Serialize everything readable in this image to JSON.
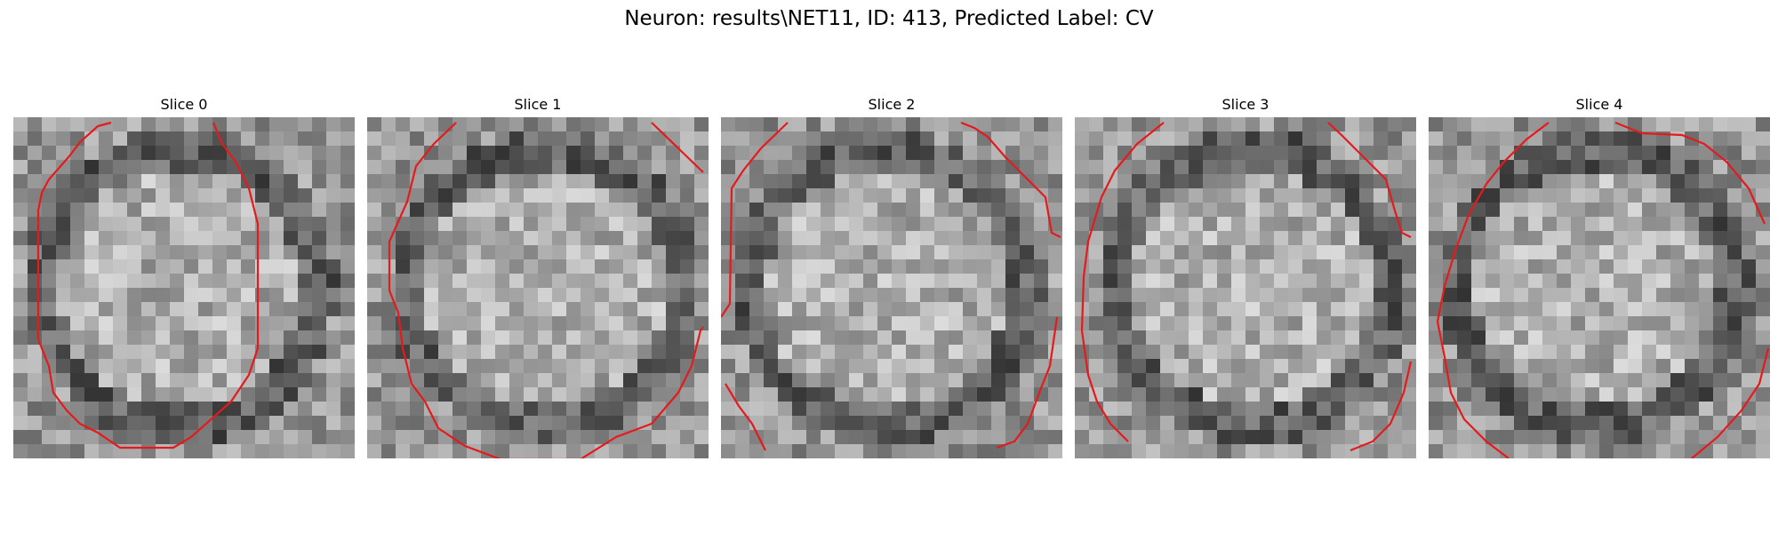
{
  "figure": {
    "title": "Neuron: results\\NET11, ID: 413, Predicted Label: CV"
  },
  "panels": [
    {
      "title": "Slice 0"
    },
    {
      "title": "Slice 1"
    },
    {
      "title": "Slice 2"
    },
    {
      "title": "Slice 3"
    },
    {
      "title": "Slice 4"
    }
  ],
  "colors": {
    "contour": "#e41a1c",
    "background": "#ffffff"
  }
}
